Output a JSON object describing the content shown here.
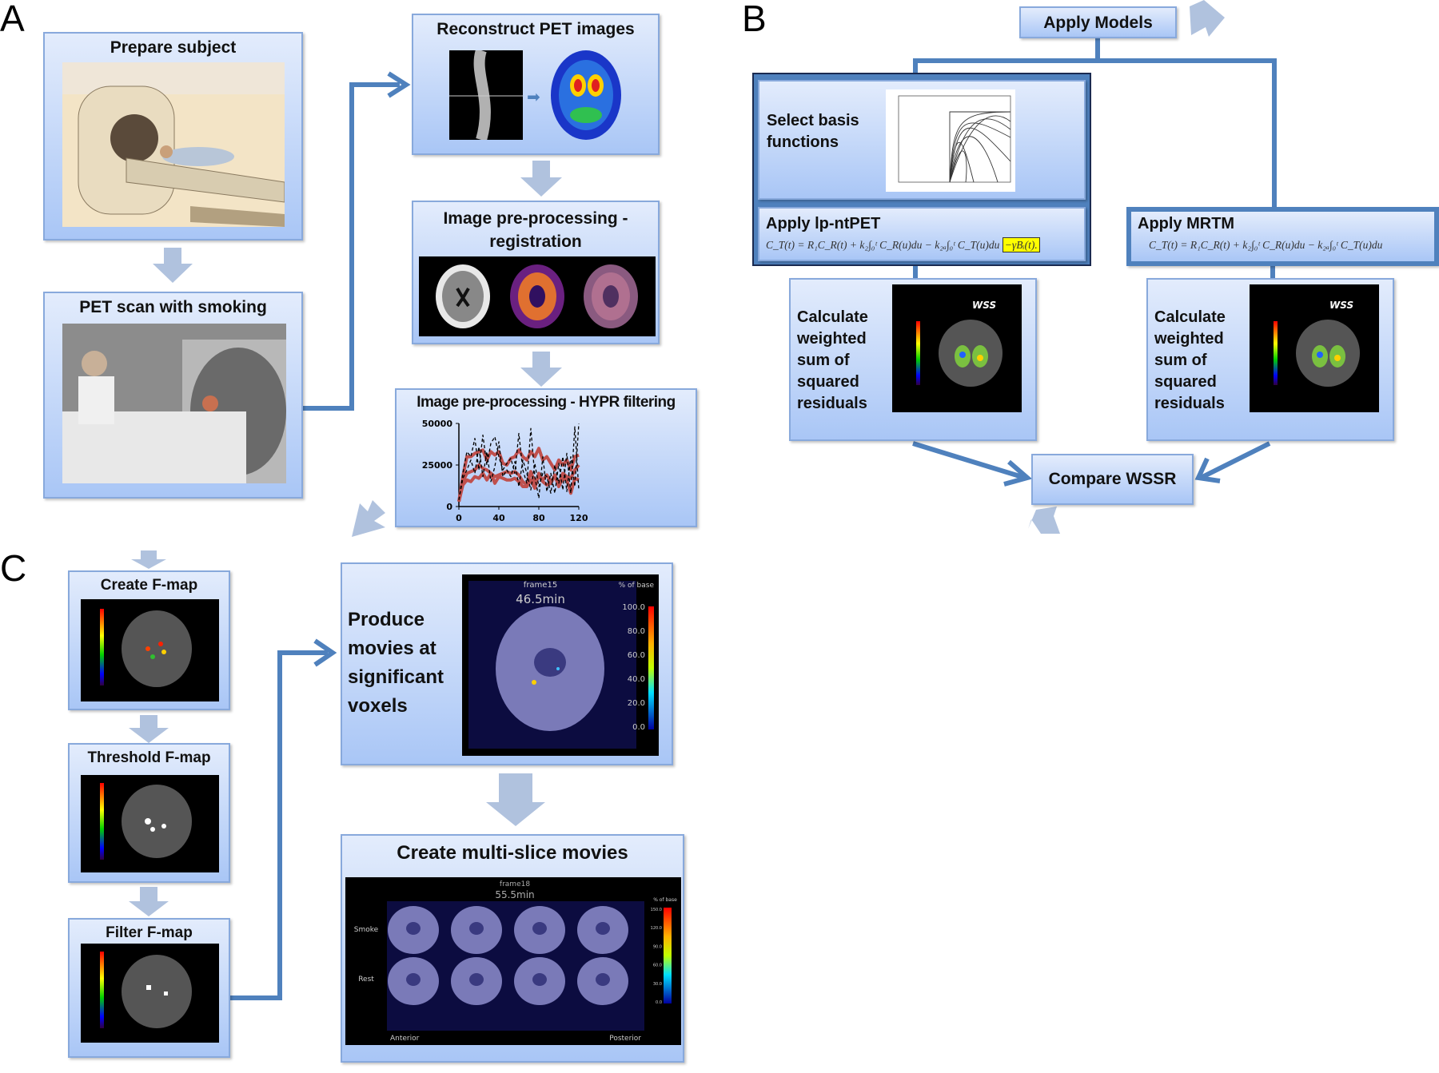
{
  "panels": {
    "a": "A",
    "b": "B",
    "c": "C"
  },
  "panel_a": {
    "prepare_subject": "Prepare subject",
    "pet_scan": "PET scan with smoking",
    "reconstruct": "Reconstruct PET images",
    "registration": "Image pre-processing - registration",
    "hypr": "Image pre-processing - HYPR filtering"
  },
  "panel_b": {
    "apply_models": "Apply Models",
    "select_basis": "Select basis functions",
    "apply_lpntpet": "Apply lp-ntPET",
    "lpntpet_equation": "C_T(t) = R₁C_R(t) + k₂∫₀ᵗ C_R(u)du − k₂ₐ∫₀ᵗ C_T(u)du",
    "lpntpet_extra_term": "−γBᵢ(t).",
    "apply_mrtm": "Apply MRTM",
    "mrtm_equation": "C_T(t) = R₁C_R(t) + k₂∫₀ᵗ C_R(u)du − k₂ₐ∫₀ᵗ C_T(u)du",
    "calc_left": "Calculate weighted sum of squared residuals",
    "calc_right": "Calculate weighted sum of squared residuals",
    "wss_label": "WSS",
    "compare": "Compare WSSR"
  },
  "panel_c": {
    "create_fmap": "Create F-map",
    "threshold_fmap": "Threshold F-map",
    "filter_fmap": "Filter F-map",
    "produce_movies": "Produce movies at significant voxels",
    "movie_frame": "frame15",
    "movie_time": "46.5min",
    "movie_scale_title": "% of base",
    "movie_scale_ticks": [
      "100.0",
      "80.0",
      "60.0",
      "40.0",
      "20.0",
      "0.0"
    ],
    "multi_slice": "Create multi-slice  movies",
    "multi_frame": "frame18",
    "multi_time": "55.5min",
    "row_smoke": "Smoke",
    "row_rest": "Rest",
    "anterior": "Anterior",
    "posterior": "Posterior",
    "multi_scale_title": "% of base",
    "multi_scale_ticks": [
      "150.0",
      "120.0",
      "90.0",
      "60.0",
      "30.0",
      "0.0"
    ]
  },
  "colors": {
    "box_top": "#e3ecfc",
    "box_bottom": "#a9c6f6",
    "connector": "#4f81bd",
    "flow_arrow": "#b0c2de",
    "series_red": "#c0504d",
    "series_black": "#000000",
    "highlight": "#ffff00"
  },
  "chart_data": {
    "type": "line",
    "title": "Image pre-processing - HYPR filtering",
    "xlim": [
      0,
      120
    ],
    "ylim": [
      0,
      50000
    ],
    "xticks": [
      "0",
      "40",
      "80",
      "120"
    ],
    "yticks": [
      "0",
      "25000",
      "50000"
    ],
    "grid": false,
    "x": [
      0,
      4,
      8,
      12,
      16,
      20,
      24,
      28,
      32,
      36,
      40,
      44,
      48,
      52,
      56,
      60,
      64,
      68,
      72,
      76,
      80,
      84,
      88,
      92,
      96,
      100,
      104,
      108,
      112,
      116,
      120
    ],
    "series": [
      {
        "style": "red-solid",
        "values": [
          3000,
          18000,
          30000,
          30000,
          32000,
          33000,
          34000,
          28000,
          33000,
          31000,
          33000,
          26000,
          25000,
          29000,
          30000,
          34000,
          30000,
          28000,
          33000,
          30000,
          35000,
          28000,
          30000,
          26000,
          22000,
          28000,
          25000,
          28000,
          22000,
          30000,
          31000
        ]
      },
      {
        "style": "red-solid",
        "values": [
          3000,
          15000,
          20000,
          21000,
          22000,
          25000,
          23000,
          22000,
          20000,
          18000,
          19000,
          20000,
          21000,
          20000,
          21000,
          19000,
          15000,
          13000,
          21000,
          14000,
          18000,
          16000,
          19000,
          15000,
          18000,
          13000,
          20000,
          18000,
          17000,
          22000,
          25000
        ]
      },
      {
        "style": "red-solid",
        "values": [
          3000,
          13000,
          16000,
          15000,
          18000,
          17000,
          20000,
          16000,
          20000,
          14000,
          18000,
          17000,
          16000,
          16000,
          17000,
          15000,
          12000,
          12000,
          16000,
          11000,
          20000,
          15000,
          13000,
          14000,
          19000,
          12000,
          17000,
          16000,
          8000,
          17000,
          16000
        ]
      },
      {
        "style": "black-dashed",
        "values": [
          4000,
          20000,
          33000,
          30000,
          41000,
          22000,
          43000,
          25000,
          38000,
          42000,
          30000,
          22000,
          26000,
          29000,
          20000,
          44000,
          22000,
          14000,
          47000,
          18000,
          5000,
          30000,
          9000,
          20000,
          8000,
          26000,
          10000,
          32000,
          8000,
          48000,
          10000
        ]
      },
      {
        "style": "black-dashed",
        "values": [
          4000,
          17000,
          22000,
          28000,
          20000,
          36000,
          18000,
          33000,
          15000,
          24000,
          39000,
          18000,
          22000,
          18000,
          27000,
          12000,
          28000,
          20000,
          10000,
          26000,
          12000,
          20000,
          18000,
          8000,
          25000,
          14000,
          30000,
          9000,
          30000,
          12000,
          50000
        ]
      }
    ]
  }
}
